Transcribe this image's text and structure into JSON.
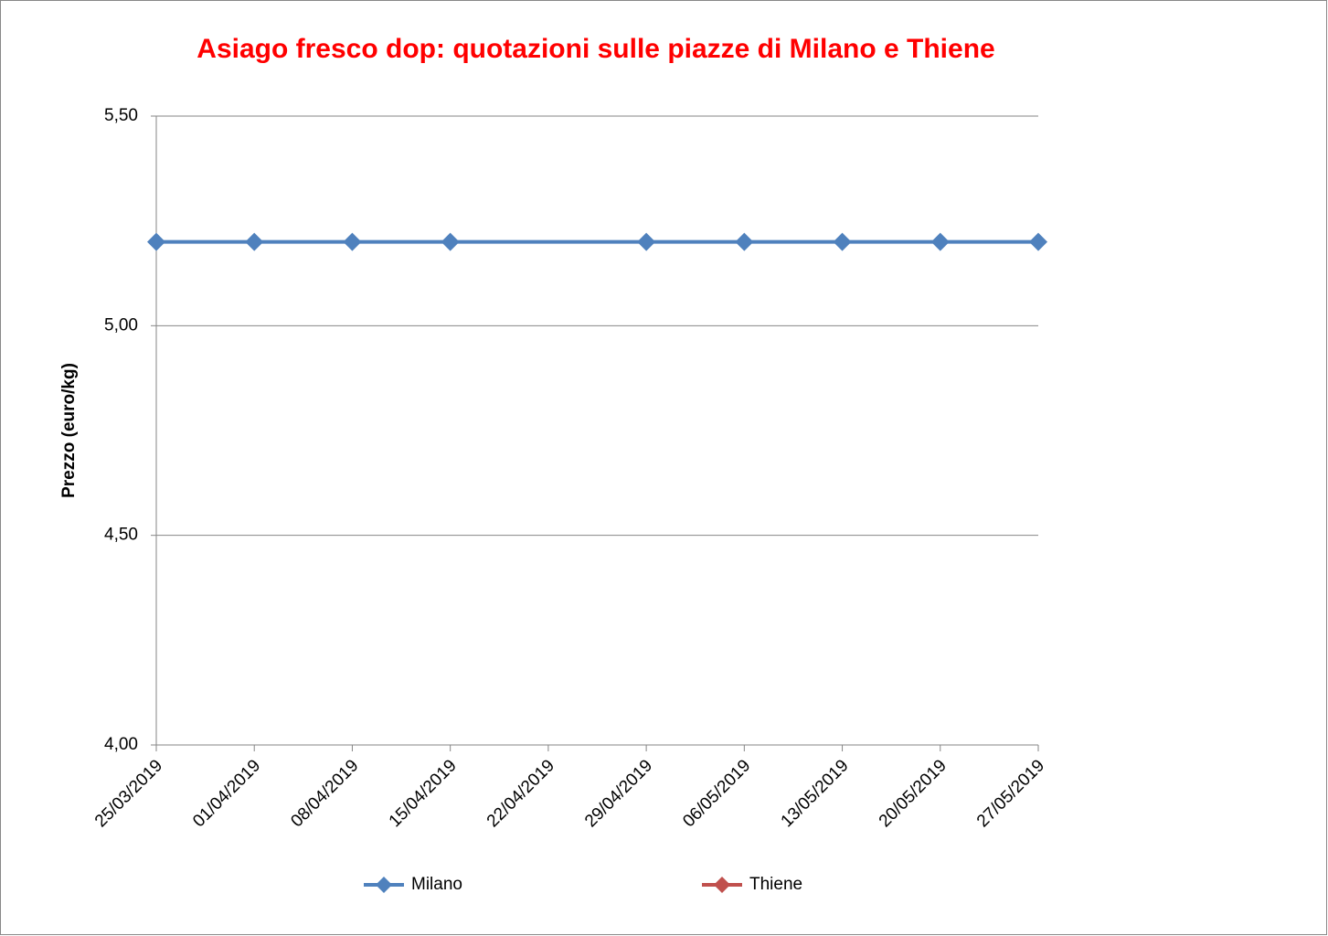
{
  "chart_data": {
    "type": "line",
    "title": "Asiago fresco dop: quotazioni sulle piazze di Milano e Thiene",
    "y_label": "Prezzo (euro/kg)",
    "x": [
      "25/03/2019",
      "01/04/2019",
      "08/04/2019",
      "15/04/2019",
      "22/04/2019",
      "29/04/2019",
      "06/05/2019",
      "13/05/2019",
      "20/05/2019",
      "27/05/2019"
    ],
    "series": [
      {
        "name": "Milano",
        "color": "#4f81bd",
        "values": [
          5.2,
          5.2,
          5.2,
          5.2,
          null,
          5.2,
          5.2,
          5.2,
          5.2,
          5.2
        ]
      },
      {
        "name": "Thiene",
        "color": "#c0504d",
        "values": [
          null,
          null,
          null,
          null,
          null,
          null,
          null,
          null,
          null,
          null
        ]
      }
    ],
    "ylim": [
      4.0,
      5.5
    ],
    "yticks": [
      {
        "value": 4.0,
        "label": "4,00"
      },
      {
        "value": 4.5,
        "label": "4,50"
      },
      {
        "value": 5.0,
        "label": "5,00"
      },
      {
        "value": 5.5,
        "label": "5,50"
      }
    ],
    "grid": true,
    "connect_gaps": true,
    "legend": "bottom"
  }
}
